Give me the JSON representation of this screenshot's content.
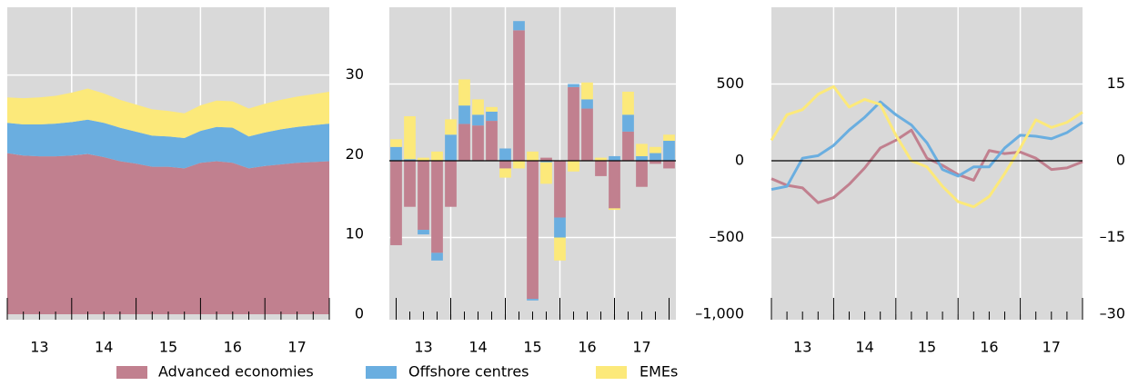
{
  "chart_data": [
    {
      "type": "area",
      "x": [
        2013.0,
        2013.25,
        2013.5,
        2013.75,
        2014.0,
        2014.25,
        2014.5,
        2014.75,
        2015.0,
        2015.25,
        2015.5,
        2015.75,
        2016.0,
        2016.25,
        2016.5,
        2016.75,
        2017.0,
        2017.25,
        2017.5,
        2017.75,
        2018.0
      ],
      "xlim": [
        2013,
        2018
      ],
      "xticks": [
        {
          "value": 2013.5,
          "label": "13"
        },
        {
          "value": 2014.5,
          "label": "14"
        },
        {
          "value": 2015.5,
          "label": "15"
        },
        {
          "value": 2016.5,
          "label": "16"
        },
        {
          "value": 2017.5,
          "label": "17"
        }
      ],
      "xgrid": [
        2014,
        2015,
        2016,
        2017
      ],
      "ylim": [
        0,
        38.5
      ],
      "yticks": [
        0,
        10,
        20,
        30
      ],
      "grid": true,
      "series": [
        {
          "name": "Advanced economies",
          "color": "#c1808f",
          "values": [
            20.2,
            19.9,
            19.8,
            19.8,
            19.9,
            20.1,
            19.7,
            19.2,
            18.9,
            18.5,
            18.5,
            18.3,
            19.0,
            19.2,
            19.0,
            18.3,
            18.6,
            18.8,
            19.0,
            19.1,
            19.2
          ]
        },
        {
          "name": "Offshore centres",
          "color": "#6aaee0",
          "values": [
            3.8,
            3.9,
            4.0,
            4.1,
            4.2,
            4.3,
            4.3,
            4.2,
            4.0,
            3.9,
            3.8,
            3.8,
            4.0,
            4.3,
            4.4,
            4.0,
            4.2,
            4.4,
            4.5,
            4.6,
            4.7
          ]
        },
        {
          "name": "EMEs",
          "color": "#fce97a",
          "values": [
            3.2,
            3.3,
            3.4,
            3.5,
            3.7,
            3.9,
            3.7,
            3.5,
            3.4,
            3.3,
            3.2,
            3.1,
            3.2,
            3.3,
            3.3,
            3.5,
            3.6,
            3.7,
            3.8,
            3.9,
            4.0
          ]
        }
      ]
    },
    {
      "type": "bar",
      "x": [
        2013.0,
        2013.25,
        2013.5,
        2013.75,
        2014.0,
        2014.25,
        2014.5,
        2014.75,
        2015.0,
        2015.25,
        2015.5,
        2015.75,
        2016.0,
        2016.25,
        2016.5,
        2016.75,
        2017.0,
        2017.25,
        2017.5,
        2017.75,
        2018.0
      ],
      "xlim": [
        2012.875,
        2018.125
      ],
      "xticks": [
        {
          "value": 2013.5,
          "label": "13"
        },
        {
          "value": 2014.5,
          "label": "14"
        },
        {
          "value": 2015.5,
          "label": "15"
        },
        {
          "value": 2016.5,
          "label": "16"
        },
        {
          "value": 2017.5,
          "label": "17"
        }
      ],
      "xgrid": [
        2014,
        2015,
        2016,
        2017
      ],
      "ylim": [
        -1000,
        1000
      ],
      "yticks": [
        {
          "value": -1000,
          "label": "–1,000"
        },
        {
          "value": -500,
          "label": "–500"
        },
        0,
        500
      ],
      "grid": true,
      "series": [
        {
          "name": "Advanced economies",
          "color": "#c1808f",
          "values": [
            -550,
            -300,
            -450,
            -600,
            -300,
            240,
            230,
            260,
            -50,
            850,
            -900,
            20,
            -370,
            480,
            340,
            -100,
            -310,
            190,
            -170,
            -20,
            -50
          ]
        },
        {
          "name": "Offshore centres",
          "color": "#6aaee0",
          "values": [
            90,
            10,
            -30,
            -50,
            170,
            120,
            70,
            60,
            80,
            60,
            -10,
            -10,
            -130,
            20,
            60,
            0,
            30,
            110,
            30,
            50,
            130
          ]
        },
        {
          "name": "EMEs",
          "color": "#fce97a",
          "values": [
            50,
            280,
            20,
            60,
            100,
            170,
            100,
            30,
            -60,
            -50,
            60,
            -140,
            -150,
            -70,
            110,
            20,
            -10,
            150,
            80,
            40,
            40
          ]
        }
      ]
    },
    {
      "type": "line",
      "x": [
        2013.0,
        2013.25,
        2013.5,
        2013.75,
        2014.0,
        2014.25,
        2014.5,
        2014.75,
        2015.0,
        2015.25,
        2015.5,
        2015.75,
        2016.0,
        2016.25,
        2016.5,
        2016.75,
        2017.0,
        2017.25,
        2017.5,
        2017.75,
        2018.0
      ],
      "xlim": [
        2013,
        2018
      ],
      "xticks": [
        {
          "value": 2013.5,
          "label": "13"
        },
        {
          "value": 2014.5,
          "label": "14"
        },
        {
          "value": 2015.5,
          "label": "15"
        },
        {
          "value": 2016.5,
          "label": "16"
        },
        {
          "value": 2017.5,
          "label": "17"
        }
      ],
      "xgrid": [
        2014,
        2015,
        2016,
        2017
      ],
      "ylim": [
        -30,
        30
      ],
      "yticks": [
        {
          "value": -30,
          "label": "–30"
        },
        {
          "value": -15,
          "label": "–15"
        },
        0,
        15
      ],
      "grid": true,
      "series": [
        {
          "name": "Advanced economies",
          "color": "#c1808f",
          "values": [
            -3.5,
            -4.8,
            -5.3,
            -8.2,
            -7.2,
            -4.6,
            -1.4,
            2.5,
            4,
            6,
            0.5,
            -0.9,
            -2.7,
            -3.8,
            2,
            1.4,
            1.7,
            0.5,
            -1.7,
            -1.4,
            -0.2
          ]
        },
        {
          "name": "Offshore centres",
          "color": "#6aaee0",
          "values": [
            -5.6,
            -5,
            0.5,
            1,
            3,
            6,
            8.5,
            11.5,
            9,
            7,
            3.5,
            -1.7,
            -3,
            -1.2,
            -1.2,
            2.5,
            5,
            4.8,
            4.3,
            5.5,
            7.5
          ]
        },
        {
          "name": "EMEs",
          "color": "#fce97a",
          "values": [
            4,
            9,
            10,
            13,
            14.5,
            10.5,
            12,
            11,
            5,
            0,
            -1.2,
            -5,
            -8,
            -9,
            -7,
            -2.5,
            2.5,
            8,
            6.5,
            7.5,
            9.5
          ]
        }
      ]
    }
  ]
}
